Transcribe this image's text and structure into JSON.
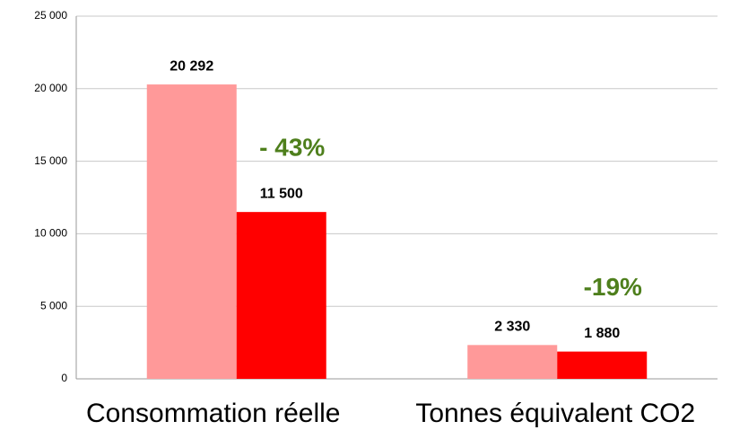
{
  "chart_data": {
    "type": "bar",
    "categories": [
      "Consommation réelle",
      "Tonnes équivalent CO2"
    ],
    "series": [
      {
        "color": "#ff9999",
        "values": [
          20292,
          2330
        ],
        "value_labels": [
          "20 292",
          "2 330"
        ]
      },
      {
        "color": "#ff0000",
        "values": [
          11500,
          1880
        ],
        "value_labels": [
          "11 500",
          "1 880"
        ]
      }
    ],
    "annotations": [
      "- 43%",
      "-19%"
    ],
    "annotation_color": "#4e7f1c",
    "ylim": [
      0,
      25000
    ],
    "yticks": [
      {
        "value": 0,
        "label": "0"
      },
      {
        "value": 5000,
        "label": "5 000"
      },
      {
        "value": 10000,
        "label": "10 000"
      },
      {
        "value": 15000,
        "label": "15 000"
      },
      {
        "value": 20000,
        "label": "20 000"
      },
      {
        "value": 25000,
        "label": "25 000"
      }
    ],
    "grid": true
  }
}
